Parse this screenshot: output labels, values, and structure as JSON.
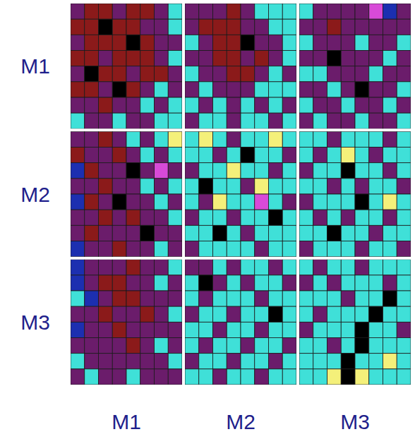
{
  "chart_data": {
    "type": "heatmap",
    "rows": [
      "M1",
      "M2",
      "M3"
    ],
    "columns": [
      "M1",
      "M2",
      "M3"
    ],
    "grid": true,
    "colors": [
      "#000000",
      "#8b1a1a",
      "#6b1c6b",
      "#1c2fb0",
      "#3fe0d8",
      "#f4f07a",
      "#d84ad8"
    ],
    "cells": [
      [
        [
          [
            2,
            1,
            1,
            2,
            1,
            1,
            2,
            4
          ],
          [
            1,
            1,
            0,
            1,
            1,
            2,
            2,
            4
          ],
          [
            2,
            1,
            1,
            1,
            0,
            1,
            2,
            2
          ],
          [
            1,
            1,
            2,
            1,
            1,
            1,
            2,
            4
          ],
          [
            2,
            0,
            1,
            1,
            2,
            1,
            1,
            2
          ],
          [
            1,
            1,
            2,
            0,
            1,
            2,
            4,
            2
          ],
          [
            2,
            2,
            1,
            2,
            2,
            4,
            2,
            4
          ],
          [
            4,
            2,
            2,
            4,
            2,
            2,
            4,
            4
          ]
        ],
        [
          [
            2,
            2,
            2,
            1,
            2,
            4,
            4,
            4
          ],
          [
            2,
            1,
            1,
            1,
            2,
            2,
            4,
            4
          ],
          [
            4,
            2,
            1,
            1,
            0,
            2,
            2,
            4
          ],
          [
            2,
            2,
            1,
            1,
            2,
            1,
            2,
            4
          ],
          [
            4,
            2,
            2,
            1,
            1,
            2,
            4,
            2
          ],
          [
            2,
            4,
            2,
            2,
            2,
            4,
            4,
            4
          ],
          [
            4,
            2,
            4,
            2,
            4,
            2,
            4,
            2
          ],
          [
            2,
            4,
            4,
            2,
            4,
            4,
            2,
            4
          ]
        ],
        [
          [
            4,
            2,
            2,
            2,
            2,
            6,
            3,
            2
          ],
          [
            2,
            2,
            1,
            2,
            2,
            2,
            2,
            2
          ],
          [
            4,
            2,
            2,
            2,
            4,
            2,
            2,
            4
          ],
          [
            2,
            2,
            0,
            2,
            2,
            2,
            4,
            2
          ],
          [
            4,
            4,
            2,
            2,
            2,
            4,
            2,
            2
          ],
          [
            2,
            2,
            4,
            2,
            0,
            2,
            2,
            4
          ],
          [
            4,
            2,
            2,
            4,
            2,
            2,
            4,
            2
          ],
          [
            2,
            4,
            2,
            2,
            4,
            2,
            2,
            4
          ]
        ]
      ],
      [
        [
          [
            2,
            2,
            1,
            2,
            4,
            2,
            4,
            5
          ],
          [
            1,
            2,
            2,
            1,
            2,
            4,
            2,
            4
          ],
          [
            3,
            1,
            2,
            2,
            0,
            2,
            6,
            2
          ],
          [
            2,
            2,
            1,
            2,
            2,
            4,
            2,
            4
          ],
          [
            3,
            1,
            2,
            0,
            2,
            2,
            4,
            2
          ],
          [
            2,
            2,
            1,
            2,
            1,
            2,
            2,
            4
          ],
          [
            2,
            1,
            2,
            2,
            2,
            0,
            2,
            2
          ],
          [
            3,
            2,
            2,
            1,
            2,
            2,
            4,
            2
          ]
        ],
        [
          [
            4,
            5,
            4,
            2,
            4,
            4,
            5,
            4
          ],
          [
            4,
            4,
            2,
            4,
            0,
            4,
            4,
            2
          ],
          [
            2,
            4,
            4,
            5,
            4,
            4,
            2,
            4
          ],
          [
            4,
            0,
            4,
            4,
            2,
            5,
            4,
            4
          ],
          [
            4,
            2,
            5,
            4,
            4,
            6,
            4,
            2
          ],
          [
            2,
            4,
            4,
            2,
            4,
            4,
            0,
            4
          ],
          [
            4,
            4,
            0,
            4,
            2,
            4,
            4,
            4
          ],
          [
            2,
            4,
            4,
            4,
            4,
            2,
            4,
            4
          ]
        ],
        [
          [
            4,
            4,
            2,
            4,
            4,
            4,
            2,
            4
          ],
          [
            4,
            2,
            4,
            5,
            4,
            2,
            4,
            4
          ],
          [
            2,
            4,
            4,
            0,
            4,
            4,
            2,
            4
          ],
          [
            4,
            4,
            2,
            4,
            2,
            4,
            4,
            2
          ],
          [
            2,
            4,
            4,
            4,
            0,
            4,
            5,
            4
          ],
          [
            4,
            2,
            4,
            2,
            4,
            4,
            2,
            4
          ],
          [
            4,
            4,
            0,
            4,
            4,
            2,
            4,
            4
          ],
          [
            2,
            4,
            4,
            4,
            2,
            4,
            4,
            2
          ]
        ]
      ],
      [
        [
          [
            3,
            2,
            2,
            2,
            1,
            2,
            2,
            4
          ],
          [
            3,
            2,
            1,
            1,
            2,
            2,
            4,
            2
          ],
          [
            4,
            3,
            2,
            1,
            1,
            2,
            2,
            2
          ],
          [
            2,
            2,
            1,
            2,
            2,
            1,
            2,
            4
          ],
          [
            3,
            2,
            2,
            1,
            2,
            2,
            2,
            2
          ],
          [
            2,
            2,
            2,
            2,
            1,
            2,
            4,
            2
          ],
          [
            4,
            2,
            2,
            2,
            2,
            2,
            2,
            4
          ],
          [
            2,
            4,
            2,
            2,
            4,
            2,
            2,
            2
          ]
        ],
        [
          [
            2,
            2,
            4,
            2,
            4,
            4,
            2,
            4
          ],
          [
            4,
            0,
            2,
            4,
            2,
            4,
            4,
            2
          ],
          [
            4,
            2,
            4,
            4,
            4,
            2,
            4,
            4
          ],
          [
            2,
            4,
            4,
            2,
            4,
            4,
            0,
            4
          ],
          [
            4,
            4,
            2,
            4,
            4,
            2,
            4,
            4
          ],
          [
            4,
            2,
            4,
            4,
            2,
            4,
            4,
            2
          ],
          [
            2,
            4,
            4,
            2,
            4,
            4,
            2,
            4
          ],
          [
            4,
            4,
            2,
            4,
            4,
            2,
            4,
            4
          ]
        ],
        [
          [
            4,
            2,
            4,
            4,
            2,
            4,
            4,
            4
          ],
          [
            2,
            4,
            2,
            4,
            4,
            4,
            2,
            4
          ],
          [
            4,
            4,
            4,
            2,
            4,
            4,
            0,
            4
          ],
          [
            4,
            2,
            4,
            4,
            4,
            0,
            4,
            4
          ],
          [
            2,
            4,
            4,
            4,
            0,
            4,
            4,
            2
          ],
          [
            4,
            4,
            2,
            4,
            0,
            4,
            4,
            4
          ],
          [
            4,
            4,
            4,
            0,
            4,
            4,
            5,
            4
          ],
          [
            4,
            4,
            5,
            0,
            5,
            4,
            4,
            4
          ]
        ]
      ]
    ]
  }
}
